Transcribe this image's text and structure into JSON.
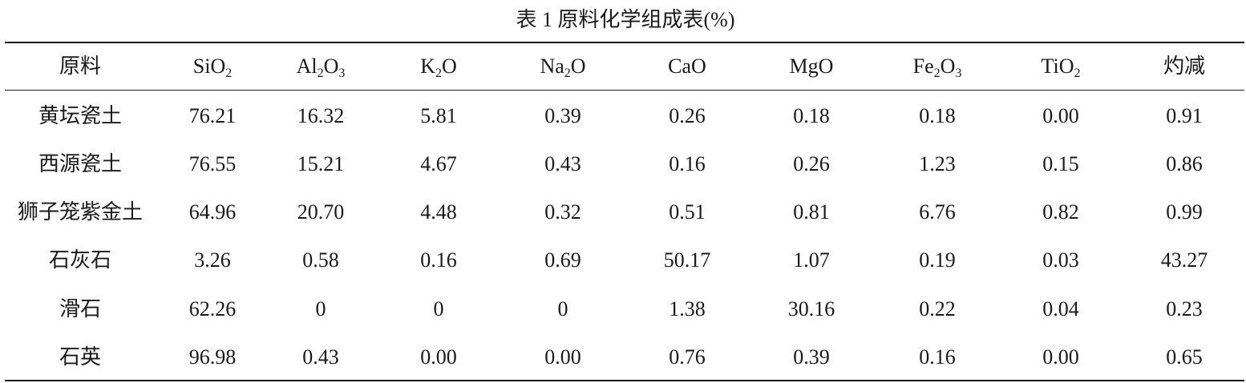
{
  "caption": "表 1 原料化学组成表(%)",
  "headers": [
    {
      "label": "原料"
    },
    {
      "label": "SiO",
      "sub": "2",
      "tail": ""
    },
    {
      "label": "Al",
      "sub": "2",
      "mid": "O",
      "sub2": "3"
    },
    {
      "label": "K",
      "sub": "2",
      "tail": "O"
    },
    {
      "label": "Na",
      "sub": "2",
      "tail": "O"
    },
    {
      "label": "CaO"
    },
    {
      "label": "MgO"
    },
    {
      "label": "Fe",
      "sub": "2",
      "mid": "O",
      "sub2": "3"
    },
    {
      "label": "TiO",
      "sub": "2",
      "tail": ""
    },
    {
      "label": "灼减"
    }
  ],
  "rows": [
    [
      "黄坛瓷土",
      "76.21",
      "16.32",
      "5.81",
      "0.39",
      "0.26",
      "0.18",
      "0.18",
      "0.00",
      "0.91"
    ],
    [
      "西源瓷土",
      "76.55",
      "15.21",
      "4.67",
      "0.43",
      "0.16",
      "0.26",
      "1.23",
      "0.15",
      "0.86"
    ],
    [
      "狮子笼紫金土",
      "64.96",
      "20.70",
      "4.48",
      "0.32",
      "0.51",
      "0.81",
      "6.76",
      "0.82",
      "0.99"
    ],
    [
      "石灰石",
      "3.26",
      "0.58",
      "0.16",
      "0.69",
      "50.17",
      "1.07",
      "0.19",
      "0.03",
      "43.27"
    ],
    [
      "滑石",
      "62.26",
      "0",
      "0",
      "0",
      "1.38",
      "30.16",
      "0.22",
      "0.04",
      "0.23"
    ],
    [
      "石英",
      "96.98",
      "0.43",
      "0.00",
      "0.00",
      "0.76",
      "0.39",
      "0.16",
      "0.00",
      "0.65"
    ]
  ]
}
